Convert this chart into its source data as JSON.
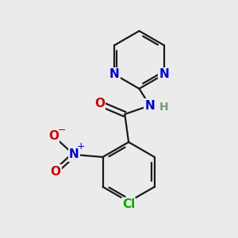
{
  "bg_color": "#ebebeb",
  "bond_color": "#1a1a1a",
  "bond_width": 1.6,
  "atom_colors": {
    "N": "#0000cc",
    "O": "#cc0000",
    "Cl": "#00aa00",
    "H": "#7a9a7a",
    "C": "#1a1a1a"
  },
  "font_size": 11
}
